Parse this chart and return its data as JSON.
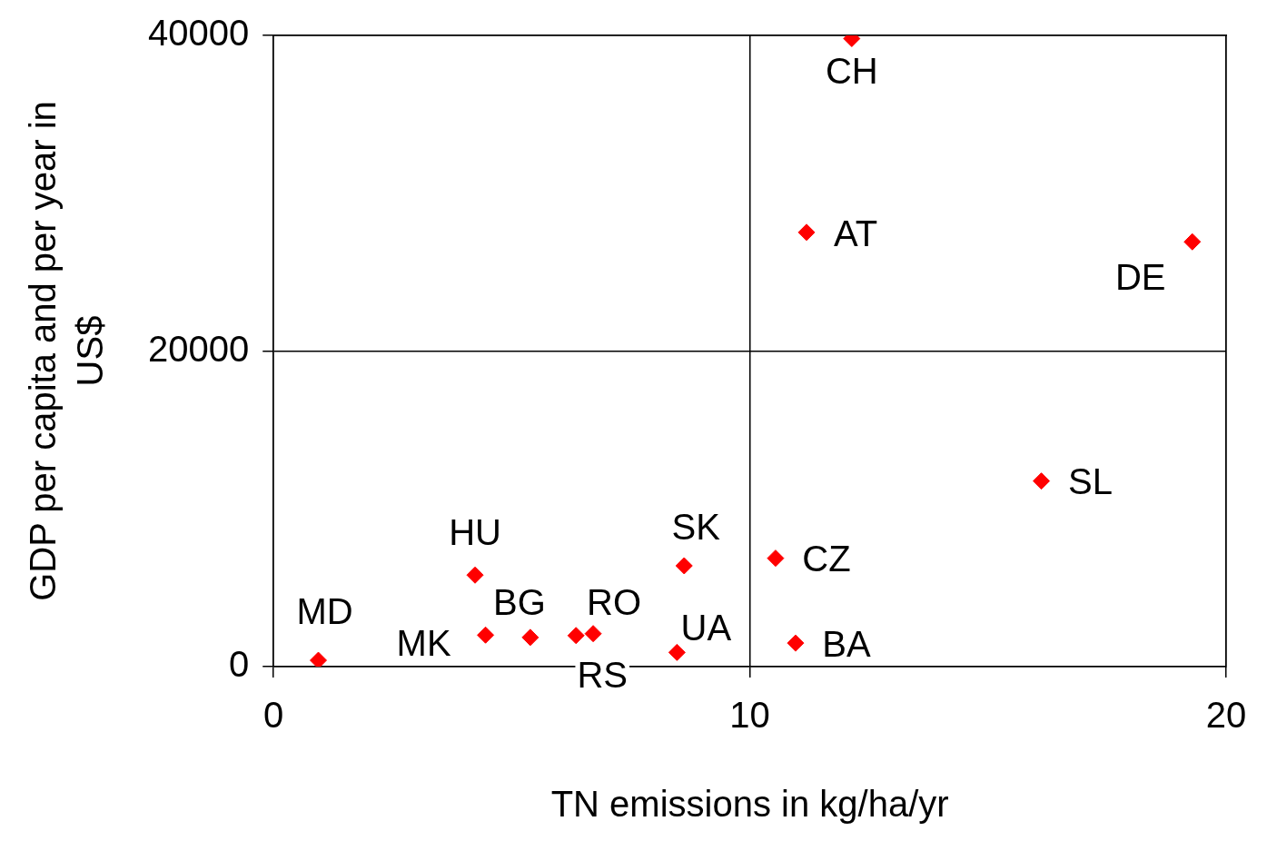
{
  "chart_data": {
    "type": "scatter",
    "xlabel": "TN emissions in kg/ha/yr",
    "ylabel": "GDP per capita and per year in US$",
    "x": [
      0.94,
      4.23,
      4.45,
      5.39,
      6.35,
      6.71,
      8.47,
      8.62,
      10.54,
      10.96,
      12.14,
      11.19,
      19.29,
      16.12
    ],
    "series": [
      {
        "color": "#ff0000",
        "values": [
          400,
          5800,
          2000,
          1850,
          1970,
          2090,
          900,
          6390,
          6870,
          1490,
          39800,
          27520,
          26920,
          11760
        ]
      }
    ],
    "annotations": [
      {
        "text": "MD",
        "x": 0.94,
        "y": 400
      },
      {
        "text": "HU",
        "x": 4.23,
        "y": 5800
      },
      {
        "text": "MK",
        "x": 4.45,
        "y": 2000
      },
      {
        "text": "BG",
        "x": 5.39,
        "y": 1850
      },
      {
        "text": "RS",
        "x": 6.35,
        "y": 1970
      },
      {
        "text": "RO",
        "x": 6.71,
        "y": 2090
      },
      {
        "text": "UA",
        "x": 8.47,
        "y": 900
      },
      {
        "text": "SK",
        "x": 8.62,
        "y": 6390
      },
      {
        "text": "CZ",
        "x": 10.54,
        "y": 6870
      },
      {
        "text": "BA",
        "x": 10.96,
        "y": 1490
      },
      {
        "text": "CH",
        "x": 12.14,
        "y": 39800
      },
      {
        "text": "AT",
        "x": 11.19,
        "y": 27520
      },
      {
        "text": "DE",
        "x": 19.29,
        "y": 26920
      },
      {
        "text": "SL",
        "x": 16.12,
        "y": 11760
      }
    ],
    "xlim": [
      0,
      20
    ],
    "xticks": [
      0,
      10,
      20
    ],
    "ylim": [
      0,
      40000
    ],
    "yticks": [
      0,
      20000,
      40000
    ],
    "grid": true,
    "legend": false,
    "marker": "diamond"
  }
}
